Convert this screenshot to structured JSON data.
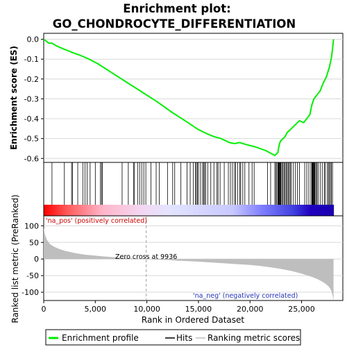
{
  "title_line1": "Enrichment plot:",
  "title_line2": "GO_CHONDROCYTE_DIFFERENTIATION",
  "chart_data": [
    {
      "type": "line",
      "name": "enrichment-score-panel",
      "ylabel": "Enrichment score (ES)",
      "xlim": [
        0,
        29000
      ],
      "ylim": [
        -0.62,
        0.03
      ],
      "yticks": [
        0.0,
        -0.1,
        -0.2,
        -0.3,
        -0.4,
        -0.5,
        -0.6
      ],
      "ytick_labels": [
        "0.0",
        "-0.1",
        "-0.2",
        "-0.3",
        "-0.4",
        "-0.5",
        "-0.6"
      ],
      "grid": true,
      "line_color": "#00ee00",
      "series": [
        {
          "name": "Enrichment profile",
          "x": [
            0,
            500,
            800,
            1300,
            2000,
            2700,
            3500,
            4400,
            5300,
            6500,
            8000,
            9500,
            11000,
            12500,
            14000,
            15000,
            15800,
            16500,
            17200,
            18000,
            18500,
            19000,
            19600,
            20400,
            21500,
            22400,
            22700,
            22800,
            22900,
            23000,
            23200,
            23400,
            23600,
            24000,
            24400,
            24800,
            25200,
            25500,
            25800,
            26000,
            26200,
            26500,
            26800,
            27100,
            27400,
            27700,
            27900,
            28000,
            28100
          ],
          "y": [
            0.0,
            -0.02,
            -0.02,
            -0.035,
            -0.05,
            -0.065,
            -0.08,
            -0.1,
            -0.125,
            -0.165,
            -0.215,
            -0.265,
            -0.315,
            -0.37,
            -0.42,
            -0.455,
            -0.475,
            -0.49,
            -0.5,
            -0.52,
            -0.525,
            -0.52,
            -0.53,
            -0.54,
            -0.56,
            -0.585,
            -0.57,
            -0.54,
            -0.52,
            -0.51,
            -0.5,
            -0.49,
            -0.47,
            -0.45,
            -0.43,
            -0.41,
            -0.42,
            -0.4,
            -0.38,
            -0.33,
            -0.3,
            -0.28,
            -0.26,
            -0.22,
            -0.19,
            -0.14,
            -0.09,
            -0.05,
            0.0
          ]
        }
      ]
    },
    {
      "type": "bar",
      "name": "hits-panel",
      "x": [
        800,
        2000,
        2700,
        2800,
        3300,
        3800,
        4000,
        4200,
        4500,
        5000,
        5500,
        5600,
        5700,
        7600,
        8200,
        8700,
        8800,
        9100,
        9300,
        9500,
        9700,
        9900,
        10400,
        10900,
        11200,
        12000,
        12500,
        12700,
        13300,
        13900,
        14200,
        14500,
        14700,
        14800,
        14900,
        15000,
        15200,
        15400,
        15500,
        15600,
        15700,
        15900,
        16200,
        16500,
        16800,
        16900,
        17100,
        17500,
        17900,
        18100,
        18300,
        18500,
        18600,
        18800,
        19000,
        19100,
        19300,
        19500,
        19900,
        20200,
        20400,
        21700,
        22000,
        22400,
        22500,
        22600,
        22700,
        22750,
        22800,
        22850,
        22900,
        22950,
        23000,
        23100,
        23200,
        23300,
        23400,
        23500,
        23600,
        23700,
        23800,
        23900,
        24000,
        24200,
        24400,
        24600,
        24800,
        25300,
        25500,
        25700,
        25900,
        26000,
        26050,
        26100,
        26150,
        26200,
        26250,
        26300,
        26400,
        26500,
        26600,
        26800,
        27000,
        27200,
        27300,
        27500,
        27600,
        27700,
        27800,
        27900,
        28000
      ]
    },
    {
      "type": "area",
      "name": "ranked-metric-panel",
      "ylabel": "Ranked list metric (PreRanked)",
      "xlabel": "Rank in Ordered Dataset",
      "xlim": [
        0,
        29000
      ],
      "ylim": [
        -125,
        130
      ],
      "xticks": [
        0,
        5000,
        10000,
        15000,
        20000,
        25000
      ],
      "xtick_labels": [
        "0",
        "5,000",
        "10,000",
        "15,000",
        "20,000",
        "25,000"
      ],
      "yticks": [
        100,
        50,
        0,
        -50,
        -100
      ],
      "ytick_labels": [
        "100",
        "50",
        "0",
        "-50",
        "-100"
      ],
      "grid": true,
      "fill_color": "#bebebe",
      "x": [
        0,
        100,
        300,
        600,
        1000,
        1500,
        2000,
        3000,
        4000,
        5000,
        6000,
        7000,
        8000,
        9000,
        9936,
        11000,
        12000,
        13000,
        14000,
        15000,
        16000,
        17000,
        18000,
        19000,
        20000,
        21000,
        22000,
        23000,
        24000,
        25000,
        26000,
        26500,
        27000,
        27300,
        27600,
        27800,
        27900,
        28000,
        28100
      ],
      "values": [
        95,
        75,
        58,
        45,
        37,
        30,
        25,
        18,
        13,
        10,
        7,
        5,
        3,
        1.5,
        0,
        -2,
        -3,
        -5,
        -6.5,
        -8,
        -10,
        -12,
        -14,
        -16,
        -18,
        -21,
        -25,
        -30,
        -36,
        -44,
        -54,
        -60,
        -68,
        -74,
        -82,
        -90,
        -98,
        -108,
        -125
      ],
      "zero_cross_label": "Zero cross at 9936",
      "zero_cross_x": 9936,
      "pos_label": "'na_pos' (positively correlated)",
      "neg_label": "'na_neg' (negatively correlated)"
    }
  ],
  "legend": {
    "items": [
      {
        "label": "Enrichment profile",
        "color": "#00ee00",
        "kind": "thick-line"
      },
      {
        "label": "Hits",
        "color": "#000000",
        "kind": "thin-line"
      },
      {
        "label": "Ranking metric scores",
        "color": "#bebebe",
        "kind": "thin-line"
      }
    ]
  }
}
